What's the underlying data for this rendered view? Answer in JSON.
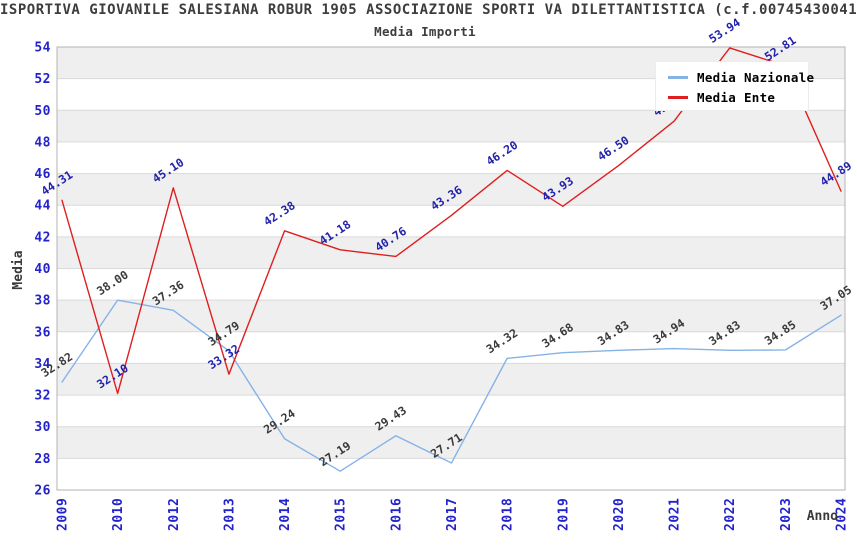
{
  "header": {
    "title": "ISPORTIVA GIOVANILE SALESIANA ROBUR 1905 ASSOCIAZIONE SPORTI VA DILETTANTISTICA (c.f.00745430041",
    "subtitle": "Media Importi"
  },
  "chart_data": {
    "type": "line",
    "title": "Media Importi",
    "xlabel": "Anno",
    "ylabel": "Media",
    "ylim": [
      26,
      54
    ],
    "yticks": [
      26,
      28,
      30,
      32,
      34,
      36,
      38,
      40,
      42,
      44,
      46,
      48,
      50,
      52,
      54
    ],
    "grid": "horizontal-bands-alternating",
    "legend_position": "top-right",
    "categories": [
      "2009",
      "2010",
      "2012",
      "2013",
      "2014",
      "2015",
      "2016",
      "2017",
      "2018",
      "2019",
      "2020",
      "2021",
      "2022",
      "2023",
      "2024"
    ],
    "series": [
      {
        "name": "Media Nazionale",
        "color": "#85b3e6",
        "label_color": "#3a3a3a",
        "values": [
          "32.82",
          "38.00",
          "37.36",
          "34.79",
          "29.24",
          "27.19",
          "29.43",
          "27.71",
          "34.32",
          "34.68",
          "34.83",
          "34.94",
          "34.83",
          "34.85",
          "37.05"
        ]
      },
      {
        "name": "Media Ente",
        "color": "#df1f1f",
        "label_color": "#2222aa",
        "values": [
          "44.31",
          "32.10",
          "45.10",
          "33.32",
          "42.38",
          "41.18",
          "40.76",
          "43.36",
          "46.20",
          "43.93",
          "46.50",
          "49.31",
          "53.94",
          "52.81",
          "44.89"
        ]
      }
    ]
  },
  "colors": {
    "background": "#ffffff",
    "band": "#efefef",
    "gridline": "#d9d9d9",
    "plot_border": "#b3b3b3",
    "tick_label": "#2323cc",
    "axis_title": "#3a3a3a",
    "title_text": "#3d3d3d",
    "legend_text": "#000000"
  }
}
